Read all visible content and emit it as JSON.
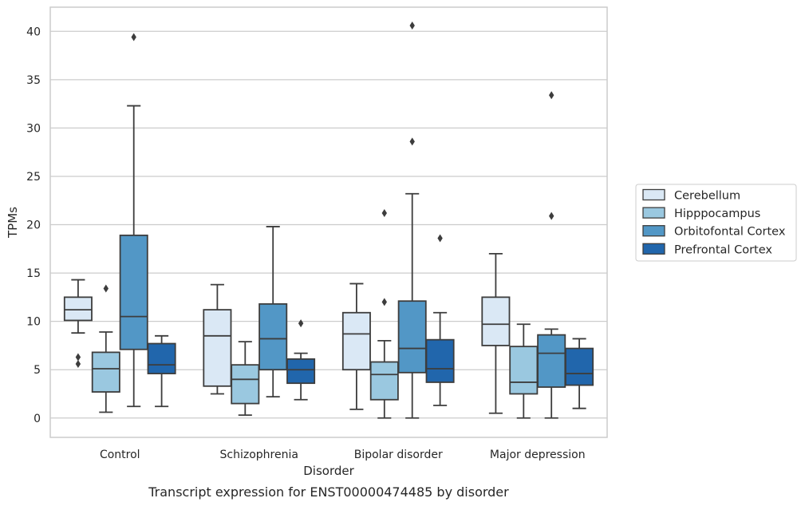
{
  "chart_data": {
    "type": "boxplot",
    "caption": "Transcript expression for ENST00000474485 by disorder",
    "xlabel": "Disorder",
    "ylabel": "TPMs",
    "ylim": [
      -2,
      42.5
    ],
    "yticks": [
      0,
      5,
      10,
      15,
      20,
      25,
      30,
      35,
      40
    ],
    "grid": "horizontal",
    "legend_position": "right",
    "categories": [
      "Control",
      "Schizophrenia",
      "Bipolar disorder",
      "Major depression"
    ],
    "series": [
      {
        "name": "Cerebellum",
        "color": "#dae8f5",
        "boxes": [
          {
            "whislo": 8.8,
            "q1": 10.1,
            "med": 11.2,
            "q3": 12.5,
            "whishi": 14.3,
            "fliers": [
              6.3,
              5.6
            ]
          },
          {
            "whislo": 2.5,
            "q1": 3.3,
            "med": 8.5,
            "q3": 11.2,
            "whishi": 13.8,
            "fliers": []
          },
          {
            "whislo": 0.9,
            "q1": 5.0,
            "med": 8.7,
            "q3": 10.9,
            "whishi": 13.9,
            "fliers": []
          },
          {
            "whislo": 0.5,
            "q1": 7.5,
            "med": 9.7,
            "q3": 12.5,
            "whishi": 17.0,
            "fliers": []
          }
        ]
      },
      {
        "name": "Hipppocampus",
        "color": "#9ac8e0",
        "boxes": [
          {
            "whislo": 0.6,
            "q1": 2.7,
            "med": 5.1,
            "q3": 6.8,
            "whishi": 8.9,
            "fliers": [
              13.4
            ]
          },
          {
            "whislo": 0.3,
            "q1": 1.5,
            "med": 4.0,
            "q3": 5.5,
            "whishi": 7.9,
            "fliers": []
          },
          {
            "whislo": 0.0,
            "q1": 1.9,
            "med": 4.5,
            "q3": 5.8,
            "whishi": 8.0,
            "fliers": [
              21.2,
              12.0
            ]
          },
          {
            "whislo": 0.0,
            "q1": 2.5,
            "med": 3.7,
            "q3": 7.4,
            "whishi": 9.7,
            "fliers": []
          }
        ]
      },
      {
        "name": "Orbitofontal Cortex",
        "color": "#5297c6",
        "boxes": [
          {
            "whislo": 1.2,
            "q1": 7.1,
            "med": 10.5,
            "q3": 18.9,
            "whishi": 32.3,
            "fliers": [
              39.4
            ]
          },
          {
            "whislo": 2.2,
            "q1": 5.0,
            "med": 8.2,
            "q3": 11.8,
            "whishi": 19.8,
            "fliers": []
          },
          {
            "whislo": 0.0,
            "q1": 4.7,
            "med": 7.2,
            "q3": 12.1,
            "whishi": 23.2,
            "fliers": [
              40.6,
              28.6
            ]
          },
          {
            "whislo": 0.0,
            "q1": 3.2,
            "med": 6.7,
            "q3": 8.6,
            "whishi": 9.2,
            "fliers": [
              33.4,
              20.9
            ]
          }
        ]
      },
      {
        "name": "Prefrontal Cortex",
        "color": "#2166ac",
        "boxes": [
          {
            "whislo": 1.2,
            "q1": 4.6,
            "med": 5.5,
            "q3": 7.7,
            "whishi": 8.5,
            "fliers": []
          },
          {
            "whislo": 1.9,
            "q1": 3.6,
            "med": 5.0,
            "q3": 6.1,
            "whishi": 6.7,
            "fliers": [
              9.8
            ]
          },
          {
            "whislo": 1.3,
            "q1": 3.7,
            "med": 5.1,
            "q3": 8.1,
            "whishi": 10.9,
            "fliers": [
              18.6
            ]
          },
          {
            "whislo": 1.0,
            "q1": 3.4,
            "med": 4.6,
            "q3": 7.2,
            "whishi": 8.2,
            "fliers": []
          }
        ]
      }
    ]
  }
}
